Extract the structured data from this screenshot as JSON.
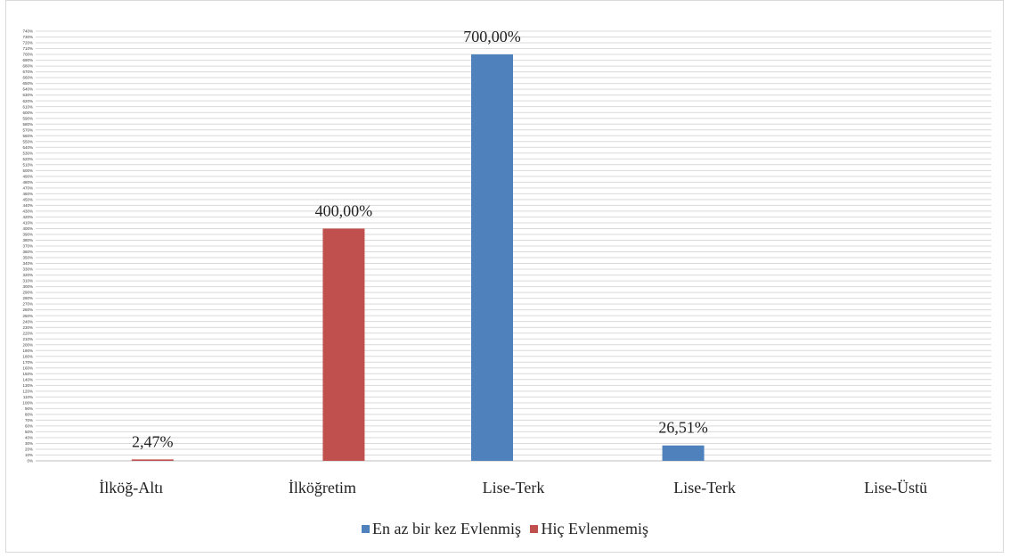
{
  "chart_data": {
    "type": "bar",
    "title": "",
    "xlabel": "",
    "ylabel": "",
    "categories": [
      "İlköğ-Altı",
      "İlköğretim",
      "Lise-Terk",
      "Lise-Terk",
      "Lise-Üstü"
    ],
    "series": [
      {
        "name": "En az bir kez Evlenmiş",
        "color": "#4f81bd",
        "values": [
          null,
          null,
          700,
          26.51,
          null
        ]
      },
      {
        "name": "Hiç Evlenmemiş",
        "color": "#c0504d",
        "values": [
          2.47,
          400,
          null,
          null,
          null
        ]
      }
    ],
    "data_labels": [
      {
        "category_index": 0,
        "series_index": 1,
        "text": "2,47%"
      },
      {
        "category_index": 1,
        "series_index": 1,
        "text": "400,00%"
      },
      {
        "category_index": 2,
        "series_index": 0,
        "text": "700,00%"
      },
      {
        "category_index": 3,
        "series_index": 0,
        "text": "26,51%"
      }
    ],
    "ylim": [
      0,
      740
    ],
    "ytick_step": 10,
    "ytick_format": "percent",
    "grid": true,
    "legend_position": "bottom"
  }
}
